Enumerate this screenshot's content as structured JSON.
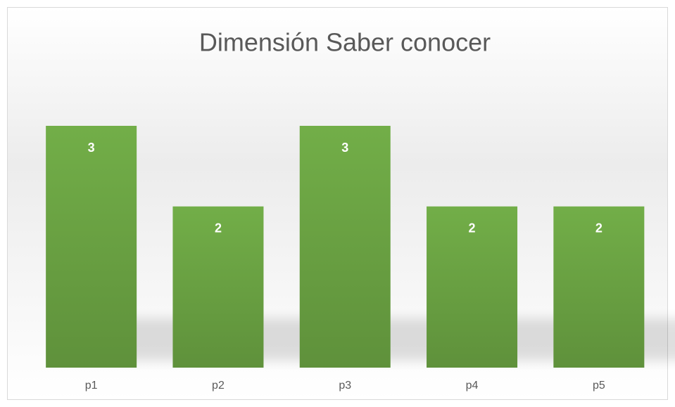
{
  "chart_data": {
    "type": "bar",
    "title": "Dimensión Saber conocer",
    "categories": [
      "p1",
      "p2",
      "p3",
      "p4",
      "p5"
    ],
    "values": [
      3,
      2,
      3,
      2,
      2
    ],
    "color": "#70ad47",
    "ylim": [
      0,
      3
    ]
  }
}
